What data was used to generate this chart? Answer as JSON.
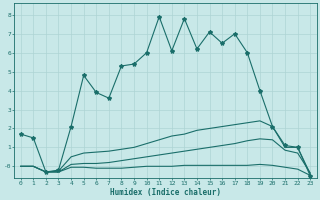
{
  "title": "",
  "xlabel": "Humidex (Indice chaleur)",
  "xlim": [
    -0.5,
    23.5
  ],
  "ylim": [
    -0.6,
    8.6
  ],
  "xticks": [
    0,
    1,
    2,
    3,
    4,
    5,
    6,
    7,
    8,
    9,
    10,
    11,
    12,
    13,
    14,
    15,
    16,
    17,
    18,
    19,
    20,
    21,
    22,
    23
  ],
  "yticks": [
    0,
    1,
    2,
    3,
    4,
    5,
    6,
    7,
    8
  ],
  "bg_color": "#c8e8e8",
  "grid_color": "#aed4d4",
  "line_color": "#1a6e6a",
  "line1_x": [
    0,
    1,
    2,
    3,
    4,
    5,
    6,
    7,
    8,
    9,
    10,
    11,
    12,
    13,
    14,
    15,
    16,
    17,
    18,
    19,
    20,
    21,
    22,
    23
  ],
  "line1_y": [
    1.7,
    1.5,
    -0.3,
    -0.2,
    2.1,
    4.8,
    3.9,
    3.6,
    5.3,
    5.4,
    6.0,
    7.9,
    6.1,
    7.8,
    6.2,
    7.1,
    6.5,
    7.0,
    6.0,
    4.0,
    2.1,
    1.1,
    1.0,
    -0.5
  ],
  "line2_x": [
    0,
    1,
    2,
    3,
    4,
    5,
    6,
    7,
    8,
    9,
    10,
    11,
    12,
    13,
    14,
    15,
    16,
    17,
    18,
    19,
    20,
    21,
    22,
    23
  ],
  "line2_y": [
    0.0,
    0.0,
    -0.3,
    -0.25,
    0.5,
    0.7,
    0.75,
    0.8,
    0.9,
    1.0,
    1.2,
    1.4,
    1.6,
    1.7,
    1.9,
    2.0,
    2.1,
    2.2,
    2.3,
    2.4,
    2.1,
    1.0,
    1.0,
    -0.4
  ],
  "line3_x": [
    0,
    1,
    2,
    3,
    4,
    5,
    6,
    7,
    8,
    9,
    10,
    11,
    12,
    13,
    14,
    15,
    16,
    17,
    18,
    19,
    20,
    21,
    22,
    23
  ],
  "line3_y": [
    0.0,
    0.0,
    -0.3,
    -0.3,
    0.1,
    0.15,
    0.15,
    0.2,
    0.3,
    0.4,
    0.5,
    0.6,
    0.7,
    0.8,
    0.9,
    1.0,
    1.1,
    1.2,
    1.35,
    1.45,
    1.4,
    0.85,
    0.7,
    -0.35
  ],
  "line4_x": [
    0,
    1,
    2,
    3,
    4,
    5,
    6,
    7,
    8,
    9,
    10,
    11,
    12,
    13,
    14,
    15,
    16,
    17,
    18,
    19,
    20,
    21,
    22,
    23
  ],
  "line4_y": [
    0.0,
    0.0,
    -0.3,
    -0.3,
    -0.05,
    -0.05,
    -0.1,
    -0.1,
    -0.1,
    -0.05,
    0.0,
    0.0,
    0.0,
    0.05,
    0.05,
    0.05,
    0.05,
    0.05,
    0.05,
    0.1,
    0.05,
    -0.05,
    -0.15,
    -0.48
  ]
}
